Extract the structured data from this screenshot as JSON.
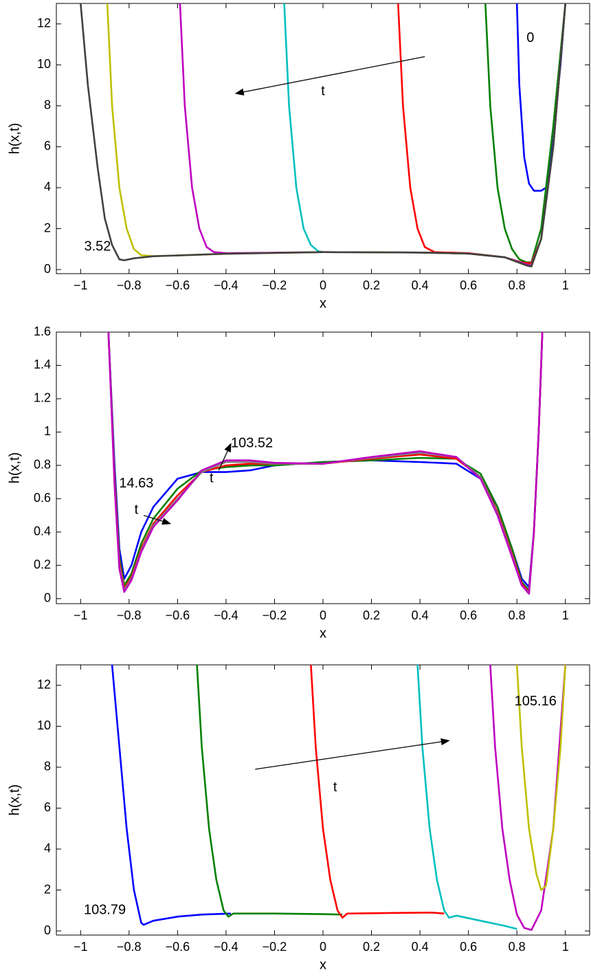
{
  "chart_data": [
    {
      "type": "line",
      "xlabel": "x",
      "ylabel": "h(x,t)",
      "xlim": [
        -1.1,
        1.1
      ],
      "ylim": [
        -0.2,
        13
      ],
      "xticks": [
        {
          "value": -1,
          "label": "−1"
        },
        {
          "value": -0.8,
          "label": "−0.8"
        },
        {
          "value": -0.6,
          "label": "−0.6"
        },
        {
          "value": -0.4,
          "label": "−0.4"
        },
        {
          "value": -0.2,
          "label": "−0.2"
        },
        0,
        0.2,
        0.4,
        0.6,
        0.8,
        1
      ],
      "yticks": [
        0,
        2,
        4,
        6,
        8,
        10,
        12
      ],
      "annotations": [
        {
          "text": "0"
        },
        {
          "text": "t"
        },
        {
          "text": "3.52"
        }
      ],
      "series": [
        {
          "color": "#0000ff",
          "x": [
            0.8,
            0.81,
            0.83,
            0.85,
            0.87,
            0.9,
            0.92,
            0.95,
            0.98,
            1.0
          ],
          "values": [
            13,
            9,
            5.5,
            4.2,
            3.85,
            3.85,
            4.0,
            6.5,
            10,
            13
          ]
        },
        {
          "color": "#008000",
          "x": [
            0.67,
            0.69,
            0.72,
            0.75,
            0.78,
            0.81,
            0.84,
            0.86,
            0.9,
            0.95,
            1.0
          ],
          "values": [
            13,
            8,
            4,
            2,
            1,
            0.5,
            0.35,
            0.35,
            2,
            7,
            13
          ]
        },
        {
          "color": "#ff0000",
          "x": [
            0.31,
            0.33,
            0.36,
            0.39,
            0.42,
            0.46,
            0.6,
            0.75,
            0.82,
            0.86,
            0.9,
            0.95,
            1.0
          ],
          "values": [
            13,
            8,
            4,
            2,
            1.1,
            0.85,
            0.8,
            0.6,
            0.35,
            0.3,
            1.5,
            6,
            13
          ]
        },
        {
          "color": "#00bfbf",
          "x": [
            -0.16,
            -0.14,
            -0.11,
            -0.08,
            -0.05,
            -0.02,
            0,
            0.4,
            0.6,
            0.75,
            0.84,
            0.86,
            0.9,
            0.95,
            1.0
          ],
          "values": [
            13,
            8,
            4,
            2,
            1.2,
            0.9,
            0.85,
            0.83,
            0.78,
            0.6,
            0.25,
            0.2,
            1.5,
            6,
            13
          ]
        },
        {
          "color": "#bf00bf",
          "x": [
            -0.59,
            -0.57,
            -0.54,
            -0.51,
            -0.48,
            -0.45,
            -0.4,
            0,
            0.4,
            0.6,
            0.75,
            0.84,
            0.86,
            0.9,
            0.95,
            1.0
          ],
          "values": [
            13,
            8,
            4,
            2,
            1.1,
            0.85,
            0.8,
            0.85,
            0.83,
            0.78,
            0.6,
            0.25,
            0.2,
            1.5,
            6,
            13
          ]
        },
        {
          "color": "#bfbf00",
          "x": [
            -0.89,
            -0.87,
            -0.84,
            -0.81,
            -0.78,
            -0.75,
            -0.7,
            -0.4,
            0,
            0.4,
            0.6,
            0.75,
            0.84,
            0.86,
            0.9,
            0.95,
            1.0
          ],
          "values": [
            13,
            8,
            4,
            2,
            1.0,
            0.7,
            0.65,
            0.77,
            0.85,
            0.83,
            0.78,
            0.6,
            0.2,
            0.15,
            1.5,
            6,
            13
          ]
        },
        {
          "color": "#404040",
          "x": [
            -1.0,
            -0.97,
            -0.93,
            -0.9,
            -0.87,
            -0.84,
            -0.82,
            -0.78,
            -0.7,
            -0.4,
            0,
            0.4,
            0.6,
            0.75,
            0.84,
            0.86,
            0.9,
            0.95,
            1.0
          ],
          "values": [
            13,
            9,
            5,
            2.5,
            1.2,
            0.5,
            0.45,
            0.55,
            0.65,
            0.77,
            0.85,
            0.83,
            0.78,
            0.6,
            0.2,
            0.15,
            1.5,
            6,
            13
          ]
        }
      ]
    },
    {
      "type": "line",
      "xlabel": "x",
      "ylabel": "h(x,t)",
      "xlim": [
        -1.1,
        1.1
      ],
      "ylim": [
        -0.03,
        1.6
      ],
      "xticks": [
        {
          "value": -1,
          "label": "−1"
        },
        {
          "value": -0.8,
          "label": "−0.8"
        },
        {
          "value": -0.6,
          "label": "−0.6"
        },
        {
          "value": -0.4,
          "label": "−0.4"
        },
        {
          "value": -0.2,
          "label": "−0.2"
        },
        0,
        0.2,
        0.4,
        0.6,
        0.8,
        1
      ],
      "yticks": [
        0,
        0.2,
        0.4,
        0.6,
        0.8,
        1,
        1.2,
        1.4,
        1.6
      ],
      "annotations": [
        {
          "text": "103.52"
        },
        {
          "text": "14.63"
        },
        {
          "text": "t"
        },
        {
          "text": "t"
        }
      ],
      "x": [
        -0.885,
        -0.86,
        -0.84,
        -0.82,
        -0.79,
        -0.75,
        -0.7,
        -0.6,
        -0.5,
        -0.4,
        -0.3,
        -0.2,
        0,
        0.2,
        0.4,
        0.55,
        0.65,
        0.72,
        0.78,
        0.82,
        0.85,
        0.87,
        0.89,
        0.905
      ],
      "series": [
        {
          "color": "#0000ff",
          "values": [
            1.6,
            0.8,
            0.3,
            0.12,
            0.2,
            0.4,
            0.55,
            0.72,
            0.76,
            0.76,
            0.77,
            0.8,
            0.82,
            0.83,
            0.82,
            0.81,
            0.72,
            0.55,
            0.3,
            0.12,
            0.07,
            0.4,
            1.0,
            1.6
          ]
        },
        {
          "color": "#008000",
          "values": [
            1.6,
            0.75,
            0.25,
            0.08,
            0.15,
            0.33,
            0.48,
            0.66,
            0.77,
            0.79,
            0.8,
            0.8,
            0.82,
            0.83,
            0.845,
            0.84,
            0.75,
            0.55,
            0.3,
            0.1,
            0.05,
            0.4,
            1.0,
            1.6
          ]
        },
        {
          "color": "#ff0000",
          "values": [
            1.6,
            0.72,
            0.22,
            0.06,
            0.13,
            0.3,
            0.45,
            0.62,
            0.76,
            0.8,
            0.81,
            0.81,
            0.81,
            0.84,
            0.865,
            0.84,
            0.73,
            0.52,
            0.27,
            0.09,
            0.04,
            0.4,
            1.0,
            1.6
          ]
        },
        {
          "color": "#808080",
          "values": [
            1.6,
            0.7,
            0.2,
            0.05,
            0.12,
            0.29,
            0.44,
            0.6,
            0.76,
            0.82,
            0.82,
            0.81,
            0.81,
            0.845,
            0.875,
            0.85,
            0.73,
            0.51,
            0.26,
            0.08,
            0.035,
            0.4,
            1.0,
            1.6
          ]
        },
        {
          "color": "#bf00bf",
          "values": [
            1.6,
            0.68,
            0.18,
            0.04,
            0.11,
            0.28,
            0.43,
            0.59,
            0.77,
            0.83,
            0.83,
            0.815,
            0.81,
            0.85,
            0.885,
            0.85,
            0.72,
            0.5,
            0.25,
            0.08,
            0.03,
            0.4,
            1.0,
            1.6
          ]
        }
      ]
    },
    {
      "type": "line",
      "xlabel": "x",
      "ylabel": "h(x,t)",
      "xlim": [
        -1.1,
        1.1
      ],
      "ylim": [
        -0.2,
        13
      ],
      "xticks": [
        {
          "value": -1,
          "label": "−1"
        },
        {
          "value": -0.8,
          "label": "−0.8"
        },
        {
          "value": -0.6,
          "label": "−0.6"
        },
        {
          "value": -0.4,
          "label": "−0.4"
        },
        {
          "value": -0.2,
          "label": "−0.2"
        },
        0,
        0.2,
        0.4,
        0.6,
        0.8,
        1
      ],
      "yticks": [
        0,
        2,
        4,
        6,
        8,
        10,
        12
      ],
      "annotations": [
        {
          "text": "105.16"
        },
        {
          "text": "t"
        },
        {
          "text": "103.79"
        }
      ],
      "series": [
        {
          "color": "#0000ff",
          "x": [
            -0.87,
            -0.84,
            -0.81,
            -0.78,
            -0.75,
            -0.74,
            -0.7,
            -0.6,
            -0.5,
            -0.38
          ],
          "values": [
            13,
            9,
            5,
            2,
            0.4,
            0.3,
            0.5,
            0.7,
            0.8,
            0.85
          ]
        },
        {
          "color": "#008000",
          "x": [
            -0.52,
            -0.5,
            -0.47,
            -0.44,
            -0.41,
            -0.39,
            -0.37,
            -0.2,
            0,
            0.08
          ],
          "values": [
            13,
            9,
            5,
            2.5,
            1,
            0.7,
            0.85,
            0.85,
            0.82,
            0.8
          ]
        },
        {
          "color": "#ff0000",
          "x": [
            -0.05,
            -0.03,
            0,
            0.03,
            0.06,
            0.08,
            0.1,
            0.3,
            0.45,
            0.5
          ],
          "values": [
            13,
            9,
            5,
            2.5,
            1,
            0.65,
            0.85,
            0.88,
            0.9,
            0.85
          ]
        },
        {
          "color": "#00bfbf",
          "x": [
            0.39,
            0.41,
            0.44,
            0.47,
            0.5,
            0.52,
            0.55,
            0.65,
            0.75,
            0.8
          ],
          "values": [
            13,
            9,
            5,
            2.5,
            1,
            0.65,
            0.75,
            0.5,
            0.25,
            0.1
          ]
        },
        {
          "color": "#bf00bf",
          "x": [
            0.69,
            0.71,
            0.74,
            0.77,
            0.8,
            0.83,
            0.86,
            0.9,
            0.95,
            1.0
          ],
          "values": [
            13,
            9,
            5,
            2.5,
            0.8,
            0.15,
            0.05,
            1.0,
            5,
            13
          ]
        },
        {
          "color": "#bfbf00",
          "x": [
            0.8,
            0.82,
            0.85,
            0.88,
            0.9,
            0.92,
            0.95,
            0.98,
            1.0
          ],
          "values": [
            13,
            9,
            5,
            2.8,
            2.0,
            2.2,
            5,
            9,
            13
          ]
        }
      ]
    }
  ]
}
